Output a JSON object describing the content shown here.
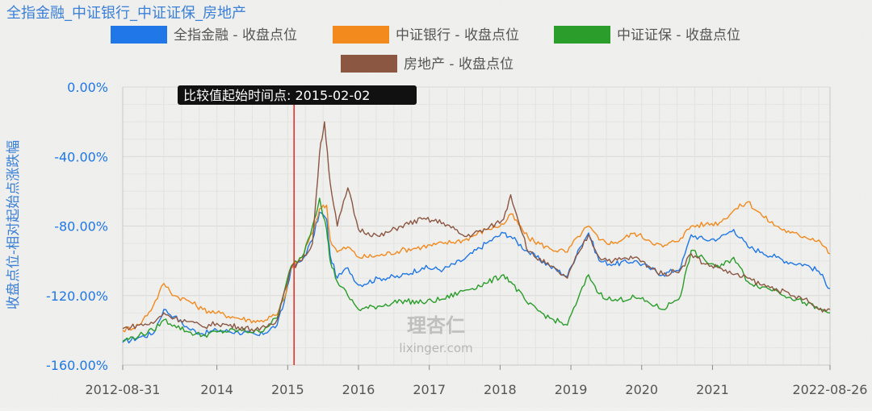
{
  "chart_data": {
    "type": "line",
    "title": "全指金融_中证银行_中证证保_房地产",
    "xlabel": "",
    "ylabel": "收盘点位-相对起始点涨跌幅",
    "ylim": [
      -160,
      0
    ],
    "yticks": [
      "0.00%",
      "-40.00%",
      "-80.00%",
      "-120.00%",
      "-160.00%"
    ],
    "xticks": [
      "2012-08-31",
      "2014",
      "2015",
      "2016",
      "2017",
      "2018",
      "2019",
      "2020",
      "2021",
      "2022-08-26"
    ],
    "grid": true,
    "legend_position": "top",
    "annotation": {
      "label": "比较值起始时间点: 2015-02-02",
      "x": 2015.09
    },
    "watermark": [
      "理杏仁",
      "lixinger.com"
    ],
    "series": [
      {
        "name": "全指金融 - 收盘点位",
        "color": "#1f77e8",
        "points": [
          [
            2012.67,
            -147
          ],
          [
            2012.9,
            -144
          ],
          [
            2013.1,
            -142
          ],
          [
            2013.25,
            -128
          ],
          [
            2013.4,
            -132
          ],
          [
            2013.6,
            -139
          ],
          [
            2013.8,
            -142
          ],
          [
            2014.0,
            -140
          ],
          [
            2014.3,
            -141
          ],
          [
            2014.6,
            -143
          ],
          [
            2014.85,
            -137
          ],
          [
            2014.95,
            -124
          ],
          [
            2015.05,
            -104
          ],
          [
            2015.2,
            -100
          ],
          [
            2015.35,
            -88
          ],
          [
            2015.45,
            -72
          ],
          [
            2015.55,
            -76
          ],
          [
            2015.6,
            -97
          ],
          [
            2015.7,
            -110
          ],
          [
            2015.85,
            -104
          ],
          [
            2016.0,
            -114
          ],
          [
            2016.3,
            -110
          ],
          [
            2016.6,
            -109
          ],
          [
            2016.9,
            -104
          ],
          [
            2017.2,
            -105
          ],
          [
            2017.5,
            -99
          ],
          [
            2017.8,
            -90
          ],
          [
            2018.05,
            -84
          ],
          [
            2018.15,
            -86
          ],
          [
            2018.4,
            -95
          ],
          [
            2018.7,
            -103
          ],
          [
            2018.95,
            -109
          ],
          [
            2019.1,
            -94
          ],
          [
            2019.25,
            -84
          ],
          [
            2019.4,
            -100
          ],
          [
            2019.6,
            -102
          ],
          [
            2019.9,
            -100
          ],
          [
            2020.1,
            -104
          ],
          [
            2020.3,
            -108
          ],
          [
            2020.55,
            -104
          ],
          [
            2020.7,
            -85
          ],
          [
            2020.9,
            -88
          ],
          [
            2021.1,
            -87
          ],
          [
            2021.3,
            -82
          ],
          [
            2021.5,
            -92
          ],
          [
            2021.7,
            -95
          ],
          [
            2021.9,
            -98
          ],
          [
            2022.1,
            -101
          ],
          [
            2022.3,
            -102
          ],
          [
            2022.5,
            -106
          ],
          [
            2022.66,
            -116
          ]
        ]
      },
      {
        "name": "中证银行 - 收盘点位",
        "color": "#f28a1e",
        "points": [
          [
            2012.67,
            -140
          ],
          [
            2012.9,
            -137
          ],
          [
            2013.1,
            -126
          ],
          [
            2013.25,
            -113
          ],
          [
            2013.4,
            -120
          ],
          [
            2013.6,
            -123
          ],
          [
            2013.8,
            -128
          ],
          [
            2014.0,
            -130
          ],
          [
            2014.3,
            -133
          ],
          [
            2014.6,
            -135
          ],
          [
            2014.85,
            -131
          ],
          [
            2014.95,
            -122
          ],
          [
            2015.05,
            -104
          ],
          [
            2015.2,
            -98
          ],
          [
            2015.35,
            -84
          ],
          [
            2015.45,
            -70
          ],
          [
            2015.55,
            -68
          ],
          [
            2015.6,
            -88
          ],
          [
            2015.7,
            -95
          ],
          [
            2015.85,
            -92
          ],
          [
            2016.0,
            -98
          ],
          [
            2016.3,
            -97
          ],
          [
            2016.6,
            -94
          ],
          [
            2016.9,
            -92
          ],
          [
            2017.2,
            -90
          ],
          [
            2017.5,
            -88
          ],
          [
            2017.8,
            -82
          ],
          [
            2018.05,
            -79
          ],
          [
            2018.15,
            -73
          ],
          [
            2018.4,
            -87
          ],
          [
            2018.7,
            -93
          ],
          [
            2018.95,
            -95
          ],
          [
            2019.1,
            -86
          ],
          [
            2019.25,
            -80
          ],
          [
            2019.4,
            -88
          ],
          [
            2019.6,
            -90
          ],
          [
            2019.9,
            -84
          ],
          [
            2020.1,
            -88
          ],
          [
            2020.3,
            -92
          ],
          [
            2020.55,
            -87
          ],
          [
            2020.7,
            -80
          ],
          [
            2020.9,
            -79
          ],
          [
            2021.1,
            -78
          ],
          [
            2021.3,
            -71
          ],
          [
            2021.5,
            -66
          ],
          [
            2021.7,
            -74
          ],
          [
            2021.9,
            -80
          ],
          [
            2022.1,
            -84
          ],
          [
            2022.3,
            -86
          ],
          [
            2022.5,
            -88
          ],
          [
            2022.66,
            -96
          ]
        ]
      },
      {
        "name": "中证证保 - 收盘点位",
        "color": "#2a9d2a",
        "points": [
          [
            2012.67,
            -146
          ],
          [
            2012.9,
            -143
          ],
          [
            2013.1,
            -140
          ],
          [
            2013.25,
            -134
          ],
          [
            2013.4,
            -137
          ],
          [
            2013.6,
            -141
          ],
          [
            2013.8,
            -143
          ],
          [
            2014.0,
            -141
          ],
          [
            2014.3,
            -140
          ],
          [
            2014.6,
            -141
          ],
          [
            2014.85,
            -133
          ],
          [
            2014.95,
            -118
          ],
          [
            2015.05,
            -103
          ],
          [
            2015.2,
            -98
          ],
          [
            2015.35,
            -80
          ],
          [
            2015.45,
            -64
          ],
          [
            2015.55,
            -82
          ],
          [
            2015.6,
            -100
          ],
          [
            2015.7,
            -112
          ],
          [
            2015.85,
            -120
          ],
          [
            2016.0,
            -128
          ],
          [
            2016.3,
            -126
          ],
          [
            2016.6,
            -123
          ],
          [
            2016.9,
            -124
          ],
          [
            2017.2,
            -122
          ],
          [
            2017.5,
            -117
          ],
          [
            2017.8,
            -113
          ],
          [
            2018.05,
            -108
          ],
          [
            2018.15,
            -112
          ],
          [
            2018.4,
            -125
          ],
          [
            2018.7,
            -133
          ],
          [
            2018.95,
            -137
          ],
          [
            2019.1,
            -122
          ],
          [
            2019.25,
            -108
          ],
          [
            2019.4,
            -119
          ],
          [
            2019.6,
            -123
          ],
          [
            2019.9,
            -121
          ],
          [
            2020.1,
            -124
          ],
          [
            2020.3,
            -128
          ],
          [
            2020.55,
            -120
          ],
          [
            2020.7,
            -94
          ],
          [
            2020.9,
            -100
          ],
          [
            2021.1,
            -104
          ],
          [
            2021.3,
            -98
          ],
          [
            2021.5,
            -112
          ],
          [
            2021.7,
            -115
          ],
          [
            2021.9,
            -117
          ],
          [
            2022.1,
            -121
          ],
          [
            2022.3,
            -124
          ],
          [
            2022.5,
            -128
          ],
          [
            2022.66,
            -130
          ]
        ]
      },
      {
        "name": "房地产 - 收盘点位",
        "color": "#8b5742",
        "points": [
          [
            2012.67,
            -139
          ],
          [
            2012.9,
            -137
          ],
          [
            2013.1,
            -136
          ],
          [
            2013.25,
            -130
          ],
          [
            2013.4,
            -133
          ],
          [
            2013.6,
            -135
          ],
          [
            2013.8,
            -138
          ],
          [
            2014.0,
            -136
          ],
          [
            2014.3,
            -138
          ],
          [
            2014.6,
            -140
          ],
          [
            2014.85,
            -134
          ],
          [
            2014.95,
            -118
          ],
          [
            2015.05,
            -104
          ],
          [
            2015.2,
            -100
          ],
          [
            2015.35,
            -90
          ],
          [
            2015.45,
            -38
          ],
          [
            2015.52,
            -20
          ],
          [
            2015.6,
            -55
          ],
          [
            2015.7,
            -80
          ],
          [
            2015.85,
            -58
          ],
          [
            2016.0,
            -82
          ],
          [
            2016.3,
            -86
          ],
          [
            2016.6,
            -80
          ],
          [
            2016.9,
            -76
          ],
          [
            2017.2,
            -78
          ],
          [
            2017.5,
            -86
          ],
          [
            2017.8,
            -82
          ],
          [
            2018.05,
            -76
          ],
          [
            2018.15,
            -62
          ],
          [
            2018.4,
            -95
          ],
          [
            2018.7,
            -103
          ],
          [
            2018.95,
            -110
          ],
          [
            2019.1,
            -96
          ],
          [
            2019.25,
            -85
          ],
          [
            2019.4,
            -98
          ],
          [
            2019.6,
            -100
          ],
          [
            2019.9,
            -98
          ],
          [
            2020.1,
            -103
          ],
          [
            2020.3,
            -108
          ],
          [
            2020.55,
            -105
          ],
          [
            2020.7,
            -96
          ],
          [
            2020.9,
            -102
          ],
          [
            2021.1,
            -104
          ],
          [
            2021.3,
            -108
          ],
          [
            2021.5,
            -110
          ],
          [
            2021.7,
            -114
          ],
          [
            2021.9,
            -116
          ],
          [
            2022.1,
            -120
          ],
          [
            2022.3,
            -122
          ],
          [
            2022.5,
            -128
          ],
          [
            2022.66,
            -128
          ]
        ]
      }
    ]
  }
}
